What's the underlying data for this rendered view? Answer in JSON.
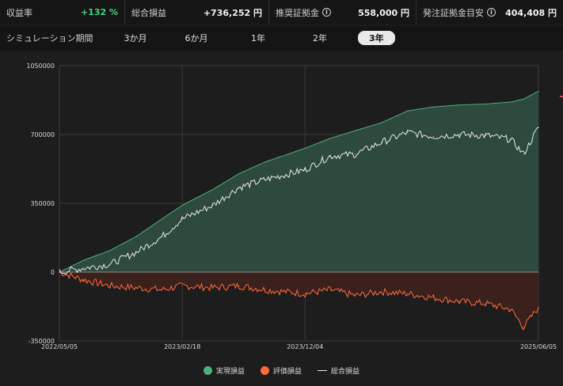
{
  "stats": {
    "return_rate": {
      "label": "収益率",
      "value": "+132 %"
    },
    "total_pl": {
      "label": "総合損益",
      "value": "+736,252 円"
    },
    "recommended_margin": {
      "label": "推奨証拠金",
      "value": "558,000 円",
      "icon": "info-icon"
    },
    "order_margin_guide": {
      "label": "発注証拠金目安",
      "value": "404,408 円",
      "icon": "info-icon"
    }
  },
  "period": {
    "label": "シミュレーション期間",
    "tabs": [
      "3か月",
      "6か月",
      "1年",
      "2年",
      "3年"
    ],
    "selected": "3年"
  },
  "legend": {
    "realized": "実現損益",
    "unrealized": "評価損益",
    "total": "総合損益"
  },
  "colors": {
    "realized_fill": "#2d4a3c",
    "realized_line": "#4caf7d",
    "unrealized_fill": "#3b211c",
    "unrealized_line": "#ff6a3d",
    "total_line": "#e8e8e8",
    "positive": "#3fd67e"
  },
  "chart_data": {
    "type": "area",
    "ylim": [
      -350000,
      1050000
    ],
    "y_ticks": [
      "1050000",
      "700000",
      "350000",
      "0",
      "-350000"
    ],
    "x_ticks": [
      "2022/05/05",
      "2023/02/18",
      "2023/12/04",
      "2025/06/05"
    ],
    "x_range": [
      "2022/05/05",
      "2025/06/05"
    ],
    "series": [
      {
        "name": "実現損益",
        "x": [
          "2022/05/05",
          "2022/07/01",
          "2022/09/01",
          "2022/11/01",
          "2023/01/01",
          "2023/02/18",
          "2023/05/01",
          "2023/07/01",
          "2023/09/01",
          "2023/12/04",
          "2024/02/01",
          "2024/04/01",
          "2024/06/01",
          "2024/08/01",
          "2024/10/01",
          "2024/12/01",
          "2025/02/01",
          "2025/04/01",
          "2025/05/01",
          "2025/06/05"
        ],
        "values": [
          0,
          60000,
          110000,
          180000,
          270000,
          340000,
          420000,
          500000,
          560000,
          630000,
          680000,
          720000,
          760000,
          820000,
          840000,
          850000,
          855000,
          865000,
          880000,
          920000
        ]
      },
      {
        "name": "評価損益",
        "x": [
          "2022/05/05",
          "2022/07/01",
          "2022/09/01",
          "2022/11/01",
          "2023/01/01",
          "2023/02/18",
          "2023/05/01",
          "2023/07/01",
          "2023/09/01",
          "2023/12/04",
          "2024/02/01",
          "2024/04/01",
          "2024/06/01",
          "2024/08/01",
          "2024/10/01",
          "2024/12/01",
          "2025/02/01",
          "2025/04/01",
          "2025/05/01",
          "2025/06/05"
        ],
        "values": [
          0,
          -40000,
          -70000,
          -80000,
          -90000,
          -70000,
          -80000,
          -70000,
          -90000,
          -110000,
          -90000,
          -120000,
          -100000,
          -110000,
          -130000,
          -150000,
          -160000,
          -190000,
          -280000,
          -180000
        ]
      },
      {
        "name": "総合損益",
        "x": [
          "2022/05/05",
          "2022/07/01",
          "2022/09/01",
          "2022/11/01",
          "2023/01/01",
          "2023/02/18",
          "2023/05/01",
          "2023/07/01",
          "2023/09/01",
          "2023/12/04",
          "2024/02/01",
          "2024/04/01",
          "2024/06/01",
          "2024/08/01",
          "2024/10/01",
          "2024/12/01",
          "2025/02/01",
          "2025/04/01",
          "2025/05/01",
          "2025/06/05"
        ],
        "values": [
          0,
          20000,
          40000,
          100000,
          180000,
          270000,
          340000,
          430000,
          470000,
          520000,
          590000,
          600000,
          660000,
          710000,
          690000,
          700000,
          695000,
          675000,
          600000,
          736252
        ]
      }
    ],
    "grid": true
  }
}
